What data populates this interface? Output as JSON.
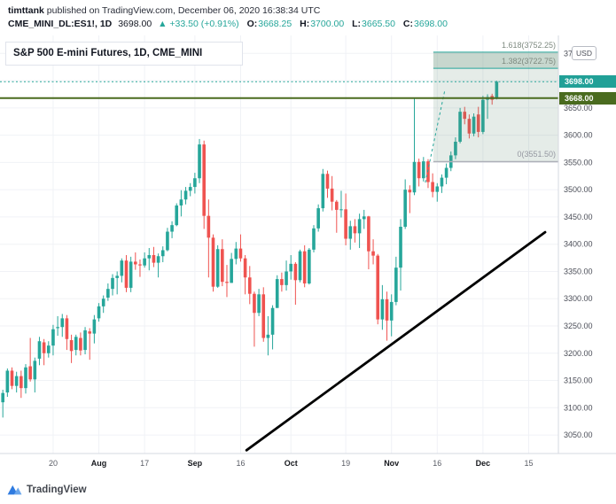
{
  "header": {
    "author": "timttank",
    "published": " published on TradingView.com, December 06, 2020 16:38:34 UTC",
    "symbol": "CME_MINI_DL:ES1!, 1D",
    "last": "3698.00",
    "change": "▲ +33.50 (+0.91%)",
    "o_label": "O:",
    "o": "3668.25",
    "h_label": "H:",
    "h": "3700.00",
    "l_label": "L:",
    "l": "3665.50",
    "c_label": "C:",
    "c": "3698.00"
  },
  "chart": {
    "title": "S&P 500 E-mini Futures, 1D, CME_MINI",
    "currency_button": "USD",
    "badges": [
      {
        "label": "3698.00",
        "price": 3698.0,
        "color": "#21a097"
      },
      {
        "label": "3668.00",
        "price": 3668.0,
        "color": "#4a6b1f"
      }
    ]
  },
  "footer": {
    "brand": "TradingView"
  },
  "colors": {
    "up": "#26a69a",
    "down": "#ef5350",
    "grid": "#f0f2f6",
    "axis_text": "#4a4d57",
    "x_day_text": "#5a5d66",
    "x_month_text": "#16181d",
    "border": "#d6d9e0",
    "hline": "#4a6b1f",
    "last_price_line": "#26a69a",
    "fib_fill": "#5c8b6f",
    "fib_line": "#26a69a",
    "fib_zero_line": "#adb0b8",
    "trendline": "#000000",
    "logo_blue": "#2f7be0",
    "logo_blue_light": "#6aa6ec"
  },
  "chart_data": {
    "type": "candlestick",
    "title": "S&P 500 E-mini Futures, 1D, CME_MINI",
    "y_axis": {
      "min": 3016,
      "max": 3783,
      "unit": "USD"
    },
    "x_axis": {
      "i0": -0.62,
      "i1": 121.5
    },
    "y_ticks": [
      {
        "p": 3750,
        "label": "3750.00"
      },
      {
        "p": 3700,
        "label": ""
      },
      {
        "p": 3650,
        "label": "3650.00"
      },
      {
        "p": 3600,
        "label": "3600.00"
      },
      {
        "p": 3550,
        "label": "3550.00"
      },
      {
        "p": 3500,
        "label": "3500.00"
      },
      {
        "p": 3450,
        "label": "3450.00"
      },
      {
        "p": 3400,
        "label": "3400.00"
      },
      {
        "p": 3350,
        "label": "3350.00"
      },
      {
        "p": 3300,
        "label": "3300.00"
      },
      {
        "p": 3250,
        "label": "3250.00"
      },
      {
        "p": 3200,
        "label": "3200.00"
      },
      {
        "p": 3150,
        "label": "3150.00"
      },
      {
        "p": 3100,
        "label": "3100.00"
      },
      {
        "p": 3050,
        "label": "3050.00"
      }
    ],
    "x_ticks": [
      {
        "i": 11,
        "label": "20",
        "bold": false
      },
      {
        "i": 21,
        "label": "Aug",
        "bold": true
      },
      {
        "i": 31,
        "label": "17",
        "bold": false
      },
      {
        "i": 42,
        "label": "Sep",
        "bold": true
      },
      {
        "i": 52,
        "label": "16",
        "bold": false
      },
      {
        "i": 63,
        "label": "Oct",
        "bold": true
      },
      {
        "i": 75,
        "label": "19",
        "bold": false
      },
      {
        "i": 85,
        "label": "Nov",
        "bold": true
      },
      {
        "i": 95,
        "label": "16",
        "bold": false
      },
      {
        "i": 105,
        "label": "Dec",
        "bold": true
      },
      {
        "i": 115,
        "label": "15",
        "bold": false
      }
    ],
    "overlays": {
      "horizontal_line": {
        "price": 3668.0
      },
      "last_price_line": {
        "price": 3698.0
      },
      "fib_extension": {
        "levels": [
          {
            "label": "1.618(3752.25)",
            "price": 3752.25
          },
          {
            "label": "1.382(3722.75)",
            "price": 3722.75
          },
          {
            "label": "0(3551.50)",
            "price": 3551.5
          }
        ],
        "band_top": 3752.25,
        "band_mid": 3722.75,
        "band_bottom": 3551.5,
        "start_index": 94.15,
        "trend_segment": {
          "i1": 92.4,
          "p1": 3513,
          "i2": 96.6,
          "p2": 3680
        }
      },
      "trendline": {
        "i1": 53.3,
        "p1": 3022,
        "i2": 118.6,
        "p2": 3422
      }
    },
    "candles": [
      [
        3110,
        3133,
        3082,
        3127
      ],
      [
        3128,
        3172,
        3120,
        3168
      ],
      [
        3168,
        3174,
        3134,
        3140
      ],
      [
        3140,
        3166,
        3128,
        3158
      ],
      [
        3158,
        3168,
        3118,
        3136
      ],
      [
        3136,
        3180,
        3126,
        3174
      ],
      [
        3176,
        3228,
        3148,
        3152
      ],
      [
        3152,
        3192,
        3128,
        3186
      ],
      [
        3190,
        3230,
        3178,
        3222
      ],
      [
        3220,
        3226,
        3178,
        3200
      ],
      [
        3200,
        3222,
        3192,
        3214
      ],
      [
        3214,
        3252,
        3196,
        3244
      ],
      [
        3246,
        3268,
        3232,
        3248
      ],
      [
        3248,
        3272,
        3230,
        3264
      ],
      [
        3264,
        3270,
        3206,
        3226
      ],
      [
        3224,
        3234,
        3182,
        3204
      ],
      [
        3206,
        3234,
        3196,
        3230
      ],
      [
        3228,
        3238,
        3196,
        3205
      ],
      [
        3206,
        3248,
        3198,
        3242
      ],
      [
        3240,
        3246,
        3188,
        3236
      ],
      [
        3236,
        3270,
        3218,
        3262
      ],
      [
        3264,
        3292,
        3258,
        3286
      ],
      [
        3286,
        3306,
        3274,
        3300
      ],
      [
        3302,
        3328,
        3296,
        3318
      ],
      [
        3318,
        3345,
        3306,
        3338
      ],
      [
        3338,
        3350,
        3308,
        3342
      ],
      [
        3342,
        3374,
        3330,
        3370
      ],
      [
        3370,
        3380,
        3312,
        3320
      ],
      [
        3320,
        3377,
        3312,
        3368
      ],
      [
        3368,
        3385,
        3353,
        3363
      ],
      [
        3363,
        3372,
        3340,
        3361
      ],
      [
        3361,
        3385,
        3357,
        3374
      ],
      [
        3374,
        3393,
        3352,
        3380
      ],
      [
        3380,
        3395,
        3358,
        3366
      ],
      [
        3366,
        3383,
        3339,
        3378
      ],
      [
        3378,
        3396,
        3367,
        3389
      ],
      [
        3389,
        3430,
        3387,
        3423
      ],
      [
        3423,
        3442,
        3411,
        3435
      ],
      [
        3435,
        3475,
        3433,
        3471
      ],
      [
        3471,
        3499,
        3451,
        3482
      ],
      [
        3482,
        3505,
        3473,
        3498
      ],
      [
        3498,
        3512,
        3488,
        3505
      ],
      [
        3505,
        3531,
        3493,
        3521
      ],
      [
        3521,
        3593,
        3512,
        3583
      ],
      [
        3583,
        3590,
        3428,
        3452
      ],
      [
        3452,
        3482,
        3339,
        3412
      ],
      [
        3412,
        3418,
        3313,
        3322
      ],
      [
        3322,
        3398,
        3320,
        3391
      ],
      [
        3391,
        3409,
        3323,
        3331
      ],
      [
        3331,
        3362,
        3303,
        3329
      ],
      [
        3329,
        3384,
        3329,
        3373
      ],
      [
        3373,
        3404,
        3363,
        3392
      ],
      [
        3392,
        3418,
        3368,
        3374
      ],
      [
        3374,
        3380,
        3308,
        3339
      ],
      [
        3339,
        3360,
        3290,
        3309
      ],
      [
        3309,
        3313,
        3212,
        3274
      ],
      [
        3274,
        3318,
        3268,
        3308
      ],
      [
        3308,
        3321,
        3221,
        3228
      ],
      [
        3228,
        3268,
        3196,
        3234
      ],
      [
        3234,
        3288,
        3207,
        3283
      ],
      [
        3283,
        3343,
        3283,
        3336
      ],
      [
        3336,
        3348,
        3313,
        3325
      ],
      [
        3325,
        3370,
        3315,
        3350
      ],
      [
        3350,
        3380,
        3335,
        3364
      ],
      [
        3364,
        3367,
        3289,
        3334
      ],
      [
        3334,
        3390,
        3330,
        3387
      ],
      [
        3387,
        3398,
        3321,
        3328
      ],
      [
        3328,
        3393,
        3326,
        3390
      ],
      [
        3390,
        3435,
        3385,
        3429
      ],
      [
        3429,
        3473,
        3423,
        3466
      ],
      [
        3466,
        3538,
        3460,
        3529
      ],
      [
        3529,
        3535,
        3485,
        3502
      ],
      [
        3502,
        3525,
        3462,
        3478
      ],
      [
        3478,
        3481,
        3421,
        3463
      ],
      [
        3463,
        3498,
        3449,
        3464
      ],
      [
        3464,
        3493,
        3398,
        3410
      ],
      [
        3410,
        3443,
        3390,
        3433
      ],
      [
        3433,
        3446,
        3403,
        3420
      ],
      [
        3420,
        3456,
        3393,
        3446
      ],
      [
        3446,
        3463,
        3428,
        3451
      ],
      [
        3451,
        3452,
        3354,
        3387
      ],
      [
        3387,
        3409,
        3363,
        3379
      ],
      [
        3379,
        3382,
        3253,
        3262
      ],
      [
        3262,
        3325,
        3243,
        3299
      ],
      [
        3299,
        3313,
        3223,
        3260
      ],
      [
        3260,
        3308,
        3231,
        3294
      ],
      [
        3294,
        3377,
        3288,
        3357
      ],
      [
        3357,
        3446,
        3315,
        3432
      ],
      [
        3432,
        3519,
        3428,
        3500
      ],
      [
        3500,
        3508,
        3457,
        3495
      ],
      [
        3495,
        3668,
        3490,
        3551
      ],
      [
        3551,
        3557,
        3506,
        3521
      ],
      [
        3521,
        3560,
        3515,
        3552
      ],
      [
        3552,
        3556,
        3503,
        3514
      ],
      [
        3514,
        3530,
        3486,
        3496
      ],
      [
        3496,
        3512,
        3478,
        3506
      ],
      [
        3506,
        3528,
        3494,
        3522
      ],
      [
        3522,
        3548,
        3510,
        3540
      ],
      [
        3540,
        3570,
        3534,
        3563
      ],
      [
        3563,
        3596,
        3556,
        3588
      ],
      [
        3588,
        3650,
        3585,
        3643
      ],
      [
        3643,
        3652,
        3620,
        3630
      ],
      [
        3630,
        3638,
        3594,
        3603
      ],
      [
        3603,
        3640,
        3598,
        3634
      ],
      [
        3638,
        3652,
        3596,
        3606
      ],
      [
        3606,
        3672,
        3602,
        3665
      ],
      [
        3665,
        3675,
        3630,
        3670
      ],
      [
        3672,
        3676,
        3656,
        3665
      ],
      [
        3668.25,
        3700,
        3665.5,
        3698
      ]
    ]
  }
}
